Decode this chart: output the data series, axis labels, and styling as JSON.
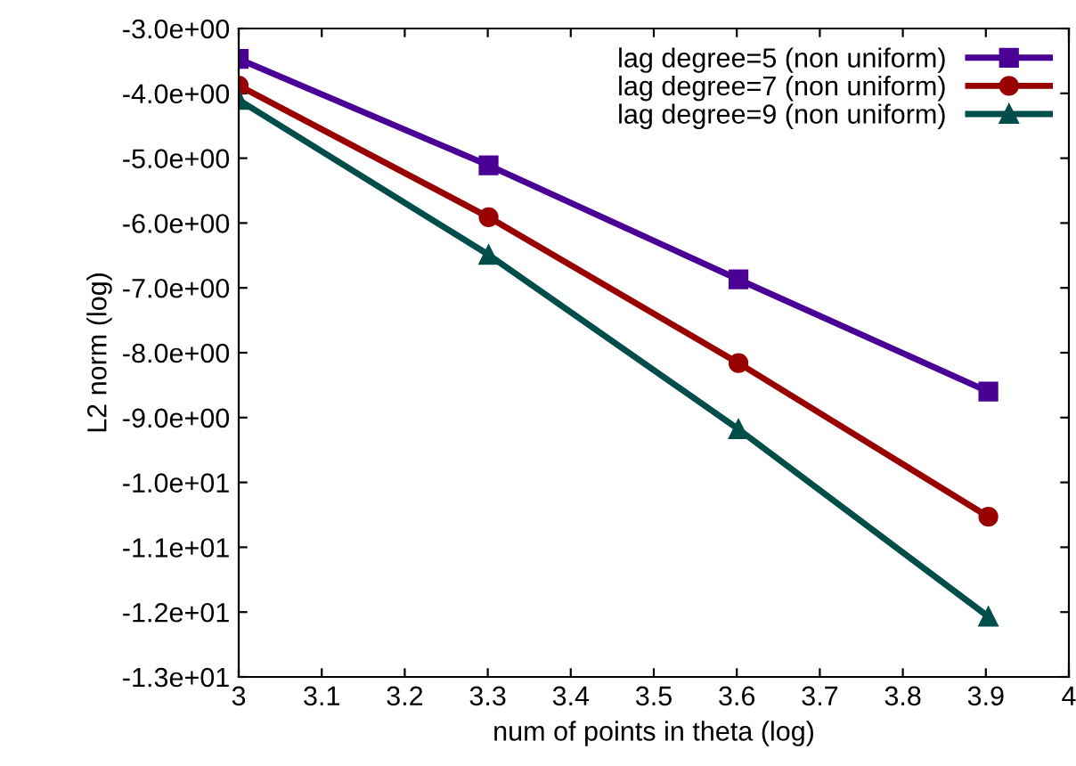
{
  "chart_data": {
    "type": "line",
    "xlabel": "num of points in theta (log)",
    "ylabel": "L2 norm (log)",
    "xlim": [
      3,
      4
    ],
    "xticks": [
      3,
      3.1,
      3.2,
      3.3,
      3.4,
      3.5,
      3.6,
      3.7,
      3.8,
      3.9,
      4
    ],
    "ylim": [
      -13,
      -3
    ],
    "yticks": [
      {
        "value": -3,
        "label": "-3.0e+00"
      },
      {
        "value": -4,
        "label": "-4.0e+00"
      },
      {
        "value": -5,
        "label": "-5.0e+00"
      },
      {
        "value": -6,
        "label": "-6.0e+00"
      },
      {
        "value": -7,
        "label": "-7.0e+00"
      },
      {
        "value": -8,
        "label": "-8.0e+00"
      },
      {
        "value": -9,
        "label": "-9.0e+00"
      },
      {
        "value": -10,
        "label": "-1.0e+01"
      },
      {
        "value": -11,
        "label": "-1.1e+01"
      },
      {
        "value": -12,
        "label": "-1.2e+01"
      },
      {
        "value": -13,
        "label": "-1.3e+01"
      }
    ],
    "grid": false,
    "legend": "top right",
    "line_style": "solid",
    "x": [
      3.0,
      3.301,
      3.602,
      3.903
    ],
    "series": [
      {
        "name": "lag degree=5 (non uniform)",
        "color": "#4b0095",
        "marker": "square",
        "values": [
          -3.47,
          -5.11,
          -6.87,
          -8.6
        ]
      },
      {
        "name": "lag degree=7 (non uniform)",
        "color": "#990000",
        "marker": "circle",
        "values": [
          -3.88,
          -5.91,
          -8.16,
          -10.53
        ]
      },
      {
        "name": "lag degree=9 (non uniform)",
        "color": "#004d4a",
        "marker": "triangle",
        "values": [
          -4.1,
          -6.49,
          -9.18,
          -12.07
        ]
      }
    ]
  }
}
